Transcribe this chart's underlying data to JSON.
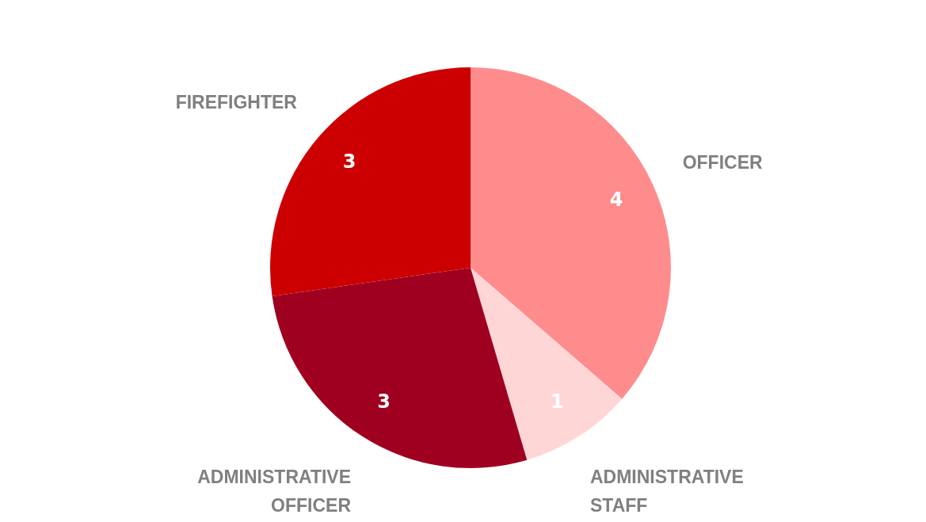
{
  "chart_data": {
    "type": "pie",
    "categories": [
      "OFFICER",
      "ADMINISTRATIVE STAFF",
      "ADMINISTRATIVE OFFICER",
      "FIREFIGHTER"
    ],
    "values": [
      4,
      1,
      3,
      3
    ],
    "colors": [
      "#ff8c8c",
      "#ffd6d6",
      "#a00020",
      "#cc0000"
    ],
    "data_labels": true,
    "legend": false
  }
}
